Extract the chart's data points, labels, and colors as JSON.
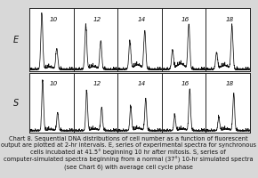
{
  "background_color": "#d8d8d8",
  "panel_bg": "#ffffff",
  "line_color": "#111111",
  "text_color": "#111111",
  "row_labels": [
    "E",
    "S"
  ],
  "time_labels": [
    "10",
    "12",
    "14",
    "16",
    "18"
  ],
  "caption": "Chart 8. Sequential DNA distributions of cell number as a function of fluorescent output are plotted at 2-hr intervals. E, series of experimental spectra for synchronous cells incubated at 41.5° beginning 10 hr after mitosis. S, series of computer-simulated spectra beginning from a normal (37°) 10-hr simulated spectra (see Chart 6) with average cell cycle phase",
  "caption_fontsize": 4.8,
  "label_fontsize": 7.0,
  "time_fontsize": 5.2,
  "n_panels": 5,
  "E_peaks": [
    {
      "g1": 0.28,
      "g2": 0.62,
      "g1h": 1.0,
      "g2h": 0.38,
      "sh": 0.04,
      "g1w": 0.022,
      "g2w": 0.022
    },
    {
      "g1": 0.28,
      "g2": 0.62,
      "g1h": 0.8,
      "g2h": 0.52,
      "sh": 0.05,
      "g1w": 0.022,
      "g2w": 0.022
    },
    {
      "g1": 0.28,
      "g2": 0.62,
      "g1h": 0.5,
      "g2h": 0.7,
      "sh": 0.08,
      "g1w": 0.022,
      "g2w": 0.022
    },
    {
      "g1": 0.25,
      "g2": 0.62,
      "g1h": 0.35,
      "g2h": 0.82,
      "sh": 0.1,
      "g1w": 0.022,
      "g2w": 0.022
    },
    {
      "g1": 0.25,
      "g2": 0.6,
      "g1h": 0.3,
      "g2h": 0.78,
      "sh": 0.07,
      "g1w": 0.022,
      "g2w": 0.022
    }
  ],
  "S_peaks": [
    {
      "g1": 0.3,
      "g2": 0.64,
      "g1h": 0.95,
      "g2h": 0.35,
      "sh": 0.02,
      "g1w": 0.02,
      "g2w": 0.02
    },
    {
      "g1": 0.3,
      "g2": 0.64,
      "g1h": 0.75,
      "g2h": 0.45,
      "sh": 0.03,
      "g1w": 0.02,
      "g2w": 0.02
    },
    {
      "g1": 0.3,
      "g2": 0.64,
      "g1h": 0.45,
      "g2h": 0.62,
      "sh": 0.04,
      "g1w": 0.02,
      "g2w": 0.02
    },
    {
      "g1": 0.3,
      "g2": 0.64,
      "g1h": 0.28,
      "g2h": 0.8,
      "sh": 0.03,
      "g1w": 0.02,
      "g2w": 0.02
    },
    {
      "g1": 0.3,
      "g2": 0.64,
      "g1h": 0.25,
      "g2h": 0.72,
      "sh": 0.03,
      "g1w": 0.02,
      "g2w": 0.02
    }
  ]
}
